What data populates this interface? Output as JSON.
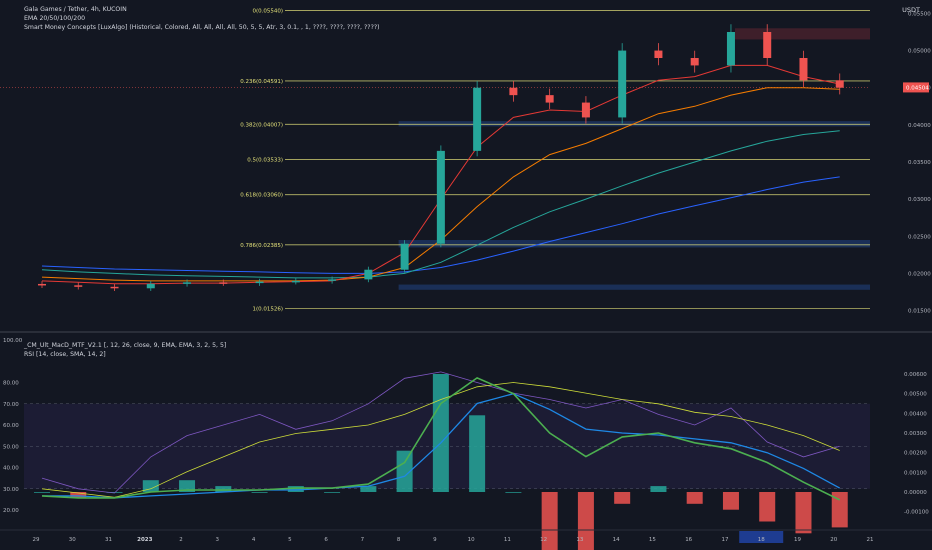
{
  "header": {
    "line1": "Gala Games / Tether, 4h, KUCOIN",
    "line2": "EMA 20/50/100/200",
    "line3": "Smart Money Concepts [LuxAlgo] (Historical, Colored, All, All, All, All, 50, 5, 5, Atr, 3, 0.1, , 1, ????, ????, ????, ????)"
  },
  "corner_currency": "USDT",
  "lower_header": {
    "line1": "_CM_Ult_MacD_MTF_V2.1 [, 12, 26, close, 9, EMA, EMA, 3, 2, 5, 5]",
    "line2": "RSI [14, close, SMA, 14, 2]"
  },
  "price_axis": {
    "ticks": [
      "0.05500",
      "0.05000",
      "0.04500",
      "0.04000",
      "0.03500",
      "0.03000",
      "0.02500",
      "0.02000",
      "0.01500"
    ],
    "current_price": "0.04504"
  },
  "fib_levels": [
    {
      "label": "0(0.05540)",
      "value": 0.0554
    },
    {
      "label": "0.236(0.04591)",
      "value": 0.04591
    },
    {
      "label": "0.382(0.04007)",
      "value": 0.04007
    },
    {
      "label": "0.5(0.03533)",
      "value": 0.03533
    },
    {
      "label": "0.618(0.03060)",
      "value": 0.0306
    },
    {
      "label": "0.786(0.02385)",
      "value": 0.02385
    },
    {
      "label": "1(0.01526)",
      "value": 0.01526
    }
  ],
  "rsi_axis": [
    "100.00",
    "80.00",
    "70.00",
    "60.00",
    "50.00",
    "40.00",
    "30.00",
    "20.00"
  ],
  "macd_axis": [
    "0.00600",
    "0.00500",
    "0.00400",
    "0.00300",
    "0.00200",
    "0.00100",
    "0.00000",
    "-0.00100"
  ],
  "time_axis": [
    "29",
    "30",
    "31",
    "2023",
    "2",
    "3",
    "4",
    "5",
    "6",
    "7",
    "8",
    "9",
    "10",
    "11",
    "12",
    "13",
    "14",
    "15",
    "16",
    "17",
    "18",
    "19",
    "20",
    "21"
  ],
  "highlighted_date": "18",
  "colors": {
    "background": "#131722",
    "up": "#26a69a",
    "down": "#ef5350",
    "fib": "#e4e27a",
    "ema20": "#e53935",
    "ema50": "#f57c00",
    "ema100": "#26a69a",
    "ema200": "#2962ff",
    "macd": "#4caf50",
    "signal": "#1e88e5",
    "rsi": "#7e57c2",
    "rsi_ma": "#cddc39"
  },
  "chart_data": {
    "type": "line",
    "title": "Gala Games / Tether, 4h, KUCOIN",
    "price_range": [
      0.014,
      0.056
    ],
    "dates": [
      "29",
      "30",
      "31",
      "2023",
      "2",
      "3",
      "4",
      "5",
      "6",
      "7",
      "8",
      "9",
      "10",
      "11",
      "12",
      "13",
      "14",
      "15",
      "16",
      "17",
      "18",
      "19",
      "20"
    ],
    "close": [
      0.0184,
      0.0182,
      0.018,
      0.0186,
      0.0188,
      0.0187,
      0.0189,
      0.019,
      0.0192,
      0.0205,
      0.024,
      0.0365,
      0.045,
      0.044,
      0.043,
      0.041,
      0.05,
      0.049,
      0.048,
      0.0525,
      0.049,
      0.046,
      0.045
    ],
    "ema20": [
      0.019,
      0.0188,
      0.0186,
      0.0186,
      0.0187,
      0.0187,
      0.0188,
      0.0189,
      0.019,
      0.02,
      0.0228,
      0.03,
      0.037,
      0.041,
      0.042,
      0.0418,
      0.044,
      0.046,
      0.0465,
      0.048,
      0.048,
      0.0465,
      0.0455
    ],
    "ema50": [
      0.0195,
      0.0193,
      0.0191,
      0.019,
      0.019,
      0.019,
      0.019,
      0.019,
      0.0191,
      0.0195,
      0.0208,
      0.0245,
      0.029,
      0.033,
      0.036,
      0.0375,
      0.0395,
      0.0415,
      0.0425,
      0.044,
      0.045,
      0.045,
      0.0448
    ],
    "ema100": [
      0.0205,
      0.0202,
      0.02,
      0.0198,
      0.0197,
      0.0196,
      0.0195,
      0.0194,
      0.0194,
      0.0195,
      0.02,
      0.0215,
      0.0238,
      0.0262,
      0.0283,
      0.03,
      0.0318,
      0.0335,
      0.035,
      0.0365,
      0.0378,
      0.0387,
      0.0392
    ],
    "ema200": [
      0.021,
      0.0208,
      0.0206,
      0.0205,
      0.0204,
      0.0203,
      0.0202,
      0.0201,
      0.02,
      0.02,
      0.0202,
      0.0208,
      0.0218,
      0.023,
      0.0243,
      0.0255,
      0.0267,
      0.028,
      0.0291,
      0.0302,
      0.0313,
      0.0323,
      0.033
    ],
    "rsi": [
      35,
      30,
      28,
      45,
      55,
      60,
      65,
      58,
      62,
      70,
      82,
      85,
      80,
      75,
      72,
      68,
      72,
      65,
      60,
      68,
      52,
      45,
      50
    ],
    "rsi_ma": [
      30,
      28,
      26,
      30,
      38,
      45,
      52,
      56,
      58,
      60,
      65,
      72,
      78,
      80,
      78,
      75,
      72,
      70,
      66,
      64,
      60,
      55,
      48
    ],
    "macd": [
      -0.0002,
      -0.0003,
      -0.0003,
      0.0,
      0.0001,
      0.0001,
      0.0001,
      0.0002,
      0.0002,
      0.0004,
      0.0015,
      0.0045,
      0.0058,
      0.005,
      0.003,
      0.0018,
      0.0028,
      0.003,
      0.0025,
      0.0022,
      0.0015,
      0.0005,
      -0.0004
    ],
    "signal": [
      -0.0002,
      -0.0002,
      -0.0003,
      -0.0002,
      -0.0001,
      0.0,
      0.0001,
      0.0001,
      0.0002,
      0.0003,
      0.0008,
      0.0025,
      0.0045,
      0.005,
      0.0042,
      0.0032,
      0.003,
      0.0029,
      0.0027,
      0.0025,
      0.002,
      0.0012,
      0.0002
    ]
  }
}
